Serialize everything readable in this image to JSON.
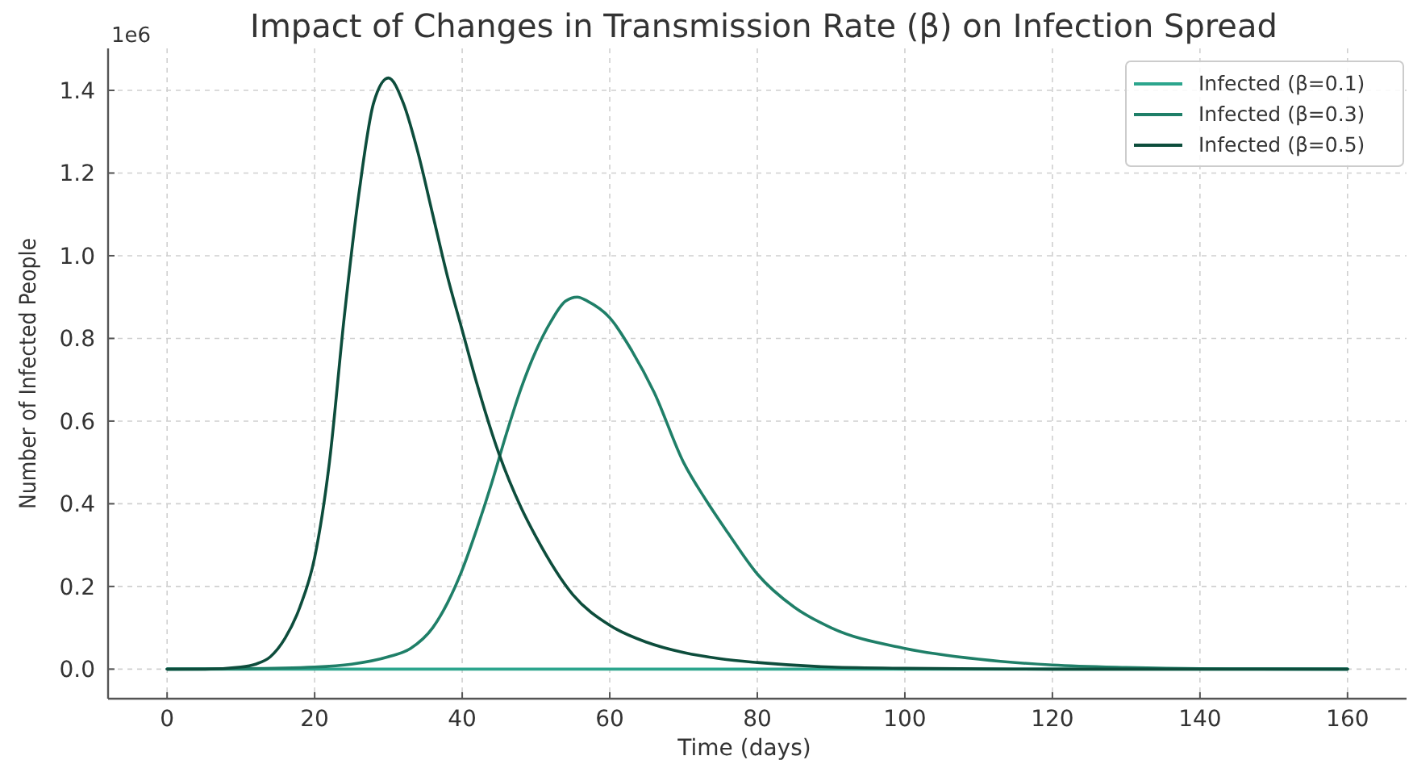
{
  "chart_data": {
    "type": "line",
    "title": "Impact of Changes in Transmission Rate (β) on Infection Spread",
    "xlabel": "Time (days)",
    "ylabel": "Number of Infected People",
    "annotations": [
      "1e6"
    ],
    "xlim": [
      -8,
      168
    ],
    "xticks": [
      0,
      20,
      40,
      60,
      80,
      100,
      120,
      140,
      160
    ],
    "ylim": [
      -0.0715,
      1.5015
    ],
    "yticks": [
      {
        "value": 0,
        "label": "0.0"
      },
      {
        "value": 0.2,
        "label": "0.2"
      },
      {
        "value": 0.4,
        "label": "0.4"
      },
      {
        "value": 0.6,
        "label": "0.6"
      },
      {
        "value": 0.8,
        "label": "0.8"
      },
      {
        "value": 1.0,
        "label": "1.0"
      },
      {
        "value": 1.2,
        "label": "1.2"
      },
      {
        "value": 1.4,
        "label": "1.4"
      }
    ],
    "grid": true,
    "legend": "top right",
    "line_style": "solid",
    "marker": "none",
    "series": [
      {
        "name": "Infected (β=0.1)",
        "color": "#2ca58d",
        "x": [
          0,
          40,
          80,
          120,
          160
        ],
        "values": [
          0,
          0,
          0,
          0,
          0
        ]
      },
      {
        "name": "Infected (β=0.3)",
        "color": "#1f7f68",
        "x": [
          0,
          10,
          20,
          25,
          30,
          33,
          36,
          38,
          40,
          42,
          44,
          46,
          48,
          50,
          52,
          54,
          55.6,
          57,
          60,
          63,
          66,
          70,
          73,
          76,
          80,
          85,
          90,
          100,
          110,
          120,
          130,
          140,
          160
        ],
        "values": [
          0,
          0.001,
          0.005,
          0.012,
          0.03,
          0.05,
          0.1,
          0.16,
          0.24,
          0.34,
          0.45,
          0.57,
          0.68,
          0.77,
          0.84,
          0.89,
          0.9,
          0.89,
          0.85,
          0.77,
          0.67,
          0.5,
          0.41,
          0.33,
          0.23,
          0.15,
          0.1,
          0.05,
          0.024,
          0.01,
          0.004,
          0.001,
          0
        ]
      },
      {
        "name": "Infected (β=0.5)",
        "color": "#0d4d3c",
        "x": [
          0,
          5,
          10,
          12,
          14,
          16,
          18,
          20,
          22,
          24,
          26,
          28,
          30,
          32,
          34,
          36,
          38,
          40,
          42,
          45,
          48,
          50,
          55,
          60,
          65,
          70,
          75,
          80,
          90,
          100,
          120,
          160
        ],
        "values": [
          0,
          0,
          0.005,
          0.012,
          0.03,
          0.075,
          0.15,
          0.27,
          0.5,
          0.85,
          1.15,
          1.37,
          1.43,
          1.37,
          1.25,
          1.1,
          0.95,
          0.82,
          0.69,
          0.52,
          0.39,
          0.32,
          0.18,
          0.106,
          0.065,
          0.04,
          0.025,
          0.016,
          0.005,
          0.002,
          0,
          0
        ]
      }
    ]
  }
}
